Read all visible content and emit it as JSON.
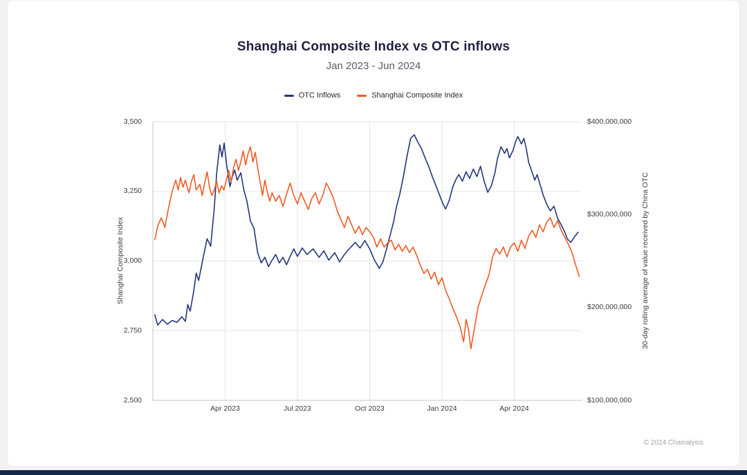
{
  "footer": {
    "credit": "© 2024 Chainalysis"
  },
  "chart_data": {
    "type": "line",
    "title": "Shanghai Composite Index vs OTC inflows",
    "subtitle": "Jan 2023 - Jun 2024",
    "grid": true,
    "legend_position": "top-center",
    "x_domain": [
      0,
      17.8
    ],
    "x_unit": "months since Jan 2023",
    "x_ticks": [
      {
        "t": 3,
        "label": "Apr 2023"
      },
      {
        "t": 6,
        "label": "Jul 2023"
      },
      {
        "t": 9,
        "label": "Oct 2023"
      },
      {
        "t": 12,
        "label": "Jan 2024"
      },
      {
        "t": 15,
        "label": "Apr 2024"
      }
    ],
    "left_axis": {
      "label": "Shanghai Composite Index",
      "min": 2500,
      "max": 3500,
      "ticks": [
        {
          "value": 2500,
          "label": "2,500"
        },
        {
          "value": 2750,
          "label": "2,750"
        },
        {
          "value": 3000,
          "label": "3,000"
        },
        {
          "value": 3250,
          "label": "3,250"
        },
        {
          "value": 3500,
          "label": "3,500"
        }
      ]
    },
    "right_axis": {
      "label": "30-day rolling average of value received by China OTC",
      "unit": "USD millions",
      "min": 100,
      "max": 400,
      "ticks": [
        {
          "value": 100,
          "label": "$100,000,000"
        },
        {
          "value": 200,
          "label": "$200,000,000"
        },
        {
          "value": 300,
          "label": "$300,000,000"
        },
        {
          "value": 400,
          "label": "$400,000,000"
        }
      ]
    },
    "series": [
      {
        "name": "OTC Inflows",
        "axis": "right",
        "color": "#223679",
        "points": [
          [
            0.08,
            192
          ],
          [
            0.2,
            181
          ],
          [
            0.4,
            187
          ],
          [
            0.6,
            182
          ],
          [
            0.8,
            186
          ],
          [
            1.0,
            184
          ],
          [
            1.2,
            190
          ],
          [
            1.35,
            185
          ],
          [
            1.45,
            203
          ],
          [
            1.55,
            196
          ],
          [
            1.7,
            218
          ],
          [
            1.8,
            237
          ],
          [
            1.9,
            229
          ],
          [
            2.1,
            255
          ],
          [
            2.25,
            274
          ],
          [
            2.4,
            266
          ],
          [
            2.55,
            307
          ],
          [
            2.65,
            345
          ],
          [
            2.78,
            375
          ],
          [
            2.87,
            362
          ],
          [
            2.96,
            377
          ],
          [
            3.07,
            352
          ],
          [
            3.2,
            330
          ],
          [
            3.3,
            341
          ],
          [
            3.4,
            348
          ],
          [
            3.5,
            337
          ],
          [
            3.65,
            345
          ],
          [
            3.78,
            326
          ],
          [
            3.9,
            315
          ],
          [
            4.05,
            293
          ],
          [
            4.2,
            285
          ],
          [
            4.35,
            259
          ],
          [
            4.5,
            248
          ],
          [
            4.65,
            254
          ],
          [
            4.8,
            244
          ],
          [
            4.95,
            251
          ],
          [
            5.1,
            257
          ],
          [
            5.25,
            248
          ],
          [
            5.4,
            254
          ],
          [
            5.55,
            246
          ],
          [
            5.7,
            255
          ],
          [
            5.85,
            263
          ],
          [
            6.0,
            255
          ],
          [
            6.2,
            264
          ],
          [
            6.4,
            257
          ],
          [
            6.65,
            263
          ],
          [
            6.9,
            254
          ],
          [
            7.1,
            261
          ],
          [
            7.3,
            251
          ],
          [
            7.55,
            259
          ],
          [
            7.75,
            249
          ],
          [
            7.95,
            257
          ],
          [
            8.15,
            263
          ],
          [
            8.4,
            270
          ],
          [
            8.6,
            264
          ],
          [
            8.8,
            272
          ],
          [
            9.0,
            263
          ],
          [
            9.2,
            251
          ],
          [
            9.4,
            242
          ],
          [
            9.55,
            249
          ],
          [
            9.7,
            263
          ],
          [
            9.85,
            278
          ],
          [
            10.0,
            293
          ],
          [
            10.1,
            307
          ],
          [
            10.25,
            322
          ],
          [
            10.4,
            341
          ],
          [
            10.55,
            363
          ],
          [
            10.7,
            382
          ],
          [
            10.85,
            386
          ],
          [
            11.0,
            378
          ],
          [
            11.15,
            371
          ],
          [
            11.3,
            361
          ],
          [
            11.45,
            352
          ],
          [
            11.6,
            341
          ],
          [
            11.75,
            331
          ],
          [
            11.9,
            321
          ],
          [
            12.05,
            311
          ],
          [
            12.15,
            306
          ],
          [
            12.3,
            315
          ],
          [
            12.45,
            330
          ],
          [
            12.6,
            339
          ],
          [
            12.7,
            343
          ],
          [
            12.85,
            336
          ],
          [
            13.0,
            346
          ],
          [
            13.15,
            339
          ],
          [
            13.3,
            349
          ],
          [
            13.45,
            341
          ],
          [
            13.6,
            352
          ],
          [
            13.75,
            336
          ],
          [
            13.9,
            324
          ],
          [
            14.05,
            331
          ],
          [
            14.2,
            345
          ],
          [
            14.3,
            360
          ],
          [
            14.45,
            373
          ],
          [
            14.6,
            366
          ],
          [
            14.7,
            371
          ],
          [
            14.8,
            361
          ],
          [
            14.95,
            369
          ],
          [
            15.05,
            378
          ],
          [
            15.15,
            384
          ],
          [
            15.3,
            376
          ],
          [
            15.4,
            382
          ],
          [
            15.5,
            371
          ],
          [
            15.6,
            356
          ],
          [
            15.75,
            345
          ],
          [
            15.85,
            337
          ],
          [
            15.95,
            343
          ],
          [
            16.1,
            330
          ],
          [
            16.2,
            321
          ],
          [
            16.35,
            311
          ],
          [
            16.5,
            304
          ],
          [
            16.65,
            309
          ],
          [
            16.8,
            296
          ],
          [
            16.95,
            289
          ],
          [
            17.1,
            281
          ],
          [
            17.2,
            274
          ],
          [
            17.35,
            270
          ],
          [
            17.5,
            276
          ],
          [
            17.65,
            281
          ]
        ]
      },
      {
        "name": "Shanghai Composite Index",
        "axis": "left",
        "color": "#f15a22",
        "points": [
          [
            0.08,
            3077
          ],
          [
            0.2,
            3125
          ],
          [
            0.35,
            3155
          ],
          [
            0.5,
            3120
          ],
          [
            0.65,
            3190
          ],
          [
            0.8,
            3250
          ],
          [
            0.95,
            3290
          ],
          [
            1.05,
            3255
          ],
          [
            1.15,
            3300
          ],
          [
            1.25,
            3265
          ],
          [
            1.35,
            3290
          ],
          [
            1.5,
            3245
          ],
          [
            1.6,
            3285
          ],
          [
            1.7,
            3310
          ],
          [
            1.8,
            3255
          ],
          [
            1.95,
            3275
          ],
          [
            2.05,
            3235
          ],
          [
            2.15,
            3280
          ],
          [
            2.25,
            3320
          ],
          [
            2.35,
            3265
          ],
          [
            2.45,
            3235
          ],
          [
            2.55,
            3255
          ],
          [
            2.65,
            3285
          ],
          [
            2.75,
            3245
          ],
          [
            2.85,
            3270
          ],
          [
            2.95,
            3255
          ],
          [
            3.05,
            3290
          ],
          [
            3.15,
            3325
          ],
          [
            3.25,
            3285
          ],
          [
            3.35,
            3335
          ],
          [
            3.45,
            3365
          ],
          [
            3.55,
            3325
          ],
          [
            3.65,
            3355
          ],
          [
            3.75,
            3395
          ],
          [
            3.85,
            3345
          ],
          [
            3.95,
            3385
          ],
          [
            4.05,
            3410
          ],
          [
            4.15,
            3355
          ],
          [
            4.25,
            3390
          ],
          [
            4.35,
            3335
          ],
          [
            4.45,
            3285
          ],
          [
            4.55,
            3235
          ],
          [
            4.65,
            3290
          ],
          [
            4.75,
            3250
          ],
          [
            4.85,
            3215
          ],
          [
            4.95,
            3245
          ],
          [
            5.1,
            3215
          ],
          [
            5.25,
            3235
          ],
          [
            5.4,
            3195
          ],
          [
            5.55,
            3240
          ],
          [
            5.7,
            3280
          ],
          [
            5.85,
            3235
          ],
          [
            6.0,
            3205
          ],
          [
            6.15,
            3245
          ],
          [
            6.3,
            3215
          ],
          [
            6.45,
            3185
          ],
          [
            6.6,
            3225
          ],
          [
            6.75,
            3245
          ],
          [
            6.9,
            3205
          ],
          [
            7.05,
            3235
          ],
          [
            7.2,
            3280
          ],
          [
            7.35,
            3255
          ],
          [
            7.5,
            3225
          ],
          [
            7.65,
            3180
          ],
          [
            7.8,
            3150
          ],
          [
            7.95,
            3120
          ],
          [
            8.1,
            3160
          ],
          [
            8.25,
            3130
          ],
          [
            8.4,
            3100
          ],
          [
            8.55,
            3125
          ],
          [
            8.7,
            3095
          ],
          [
            8.85,
            3120
          ],
          [
            9.0,
            3105
          ],
          [
            9.15,
            3085
          ],
          [
            9.3,
            3050
          ],
          [
            9.45,
            3080
          ],
          [
            9.6,
            3050
          ],
          [
            9.75,
            3065
          ],
          [
            9.9,
            3075
          ],
          [
            10.05,
            3040
          ],
          [
            10.2,
            3060
          ],
          [
            10.35,
            3035
          ],
          [
            10.5,
            3055
          ],
          [
            10.65,
            3030
          ],
          [
            10.8,
            3050
          ],
          [
            10.95,
            3020
          ],
          [
            11.1,
            2985
          ],
          [
            11.25,
            2955
          ],
          [
            11.4,
            2970
          ],
          [
            11.55,
            2935
          ],
          [
            11.7,
            2960
          ],
          [
            11.85,
            2915
          ],
          [
            12.0,
            2940
          ],
          [
            12.15,
            2895
          ],
          [
            12.3,
            2865
          ],
          [
            12.45,
            2830
          ],
          [
            12.6,
            2800
          ],
          [
            12.75,
            2765
          ],
          [
            12.9,
            2710
          ],
          [
            13.0,
            2790
          ],
          [
            13.1,
            2755
          ],
          [
            13.2,
            2685
          ],
          [
            13.35,
            2760
          ],
          [
            13.5,
            2835
          ],
          [
            13.65,
            2875
          ],
          [
            13.8,
            2915
          ],
          [
            13.95,
            2950
          ],
          [
            14.1,
            3015
          ],
          [
            14.25,
            3045
          ],
          [
            14.4,
            3025
          ],
          [
            14.55,
            3050
          ],
          [
            14.7,
            3015
          ],
          [
            14.85,
            3050
          ],
          [
            15.0,
            3065
          ],
          [
            15.15,
            3035
          ],
          [
            15.3,
            3075
          ],
          [
            15.45,
            3045
          ],
          [
            15.6,
            3090
          ],
          [
            15.75,
            3110
          ],
          [
            15.9,
            3085
          ],
          [
            16.05,
            3130
          ],
          [
            16.2,
            3105
          ],
          [
            16.35,
            3140
          ],
          [
            16.5,
            3155
          ],
          [
            16.65,
            3120
          ],
          [
            16.8,
            3145
          ],
          [
            16.95,
            3110
          ],
          [
            17.1,
            3085
          ],
          [
            17.25,
            3060
          ],
          [
            17.4,
            3030
          ],
          [
            17.55,
            2985
          ],
          [
            17.7,
            2945
          ]
        ]
      }
    ]
  }
}
